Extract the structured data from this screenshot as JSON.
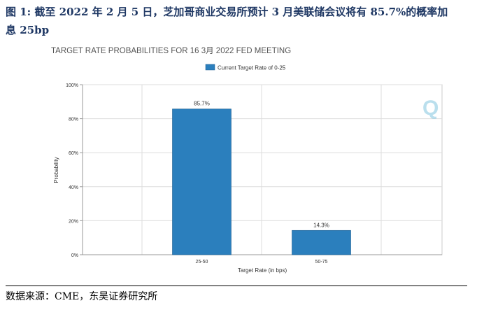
{
  "figure": {
    "caption_line1": "图 1: 截至 2022 年 2 月 5 日，芝加哥商业交易所预计 3 月美联储会议将有 85.7%的概率加",
    "caption_line2": "息 25bp",
    "source": "数据来源：CME，东吴证券研究所"
  },
  "colors": {
    "bar": "#2b7fbd",
    "title": "#555555",
    "watermark": "#9ed2e6",
    "caption": "#1f3864"
  },
  "chart_data": {
    "type": "bar",
    "title": "TARGET RATE PROBABILITIES FOR 16 3月 2022 FED MEETING",
    "legend": "Current Target Rate of 0-25",
    "legend_placement": "top-center",
    "xlabel": "Target Rate (in bps)",
    "ylabel": "Probability",
    "categories": [
      "25-50",
      "50-75"
    ],
    "values": [
      85.7,
      14.3
    ],
    "value_labels": [
      "85.7%",
      "14.3%"
    ],
    "ylim": [
      0,
      100
    ],
    "yticks": [
      0,
      20,
      40,
      60,
      80,
      100
    ],
    "ytick_labels": [
      "0%",
      "20%",
      "40%",
      "60%",
      "80%",
      "100%"
    ],
    "grid": true,
    "watermark": "Q"
  }
}
